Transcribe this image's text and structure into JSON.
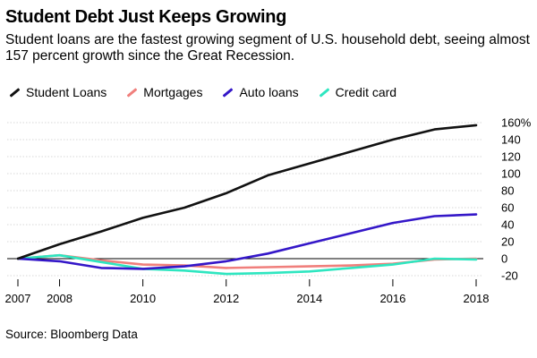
{
  "title": "Student Debt Just Keeps Growing",
  "subtitle": "Student loans are the fastest growing segment of U.S. household debt, seeing almost 157 percent growth since the Great Recession.",
  "source": "Source: Bloomberg Data",
  "chart_data": {
    "type": "line",
    "x": [
      2007,
      2008,
      2009,
      2010,
      2011,
      2012,
      2013,
      2014,
      2015,
      2016,
      2017,
      2018
    ],
    "x_tick_labels": [
      "2007",
      "2008",
      "2010",
      "2012",
      "2014",
      "2016",
      "2018"
    ],
    "y_tick_labels": [
      "160%",
      "140",
      "120",
      "100",
      "80",
      "60",
      "40",
      "20",
      "0",
      "-20"
    ],
    "ylim": [
      -20,
      160
    ],
    "legend_placement": "top-left",
    "series": [
      {
        "name": "Student Loans",
        "color": "#111111",
        "values": [
          0,
          17,
          32,
          48,
          60,
          77,
          98,
          112,
          126,
          140,
          152,
          157
        ]
      },
      {
        "name": "Mortgages",
        "color": "#f07f7c",
        "values": [
          0,
          4,
          -2,
          -7,
          -8,
          -11,
          -10,
          -9,
          -8,
          -6,
          -1,
          0
        ]
      },
      {
        "name": "Auto loans",
        "color": "#3417c8",
        "values": [
          0,
          -3,
          -11,
          -12,
          -9,
          -3,
          6,
          18,
          30,
          42,
          50,
          52
        ]
      },
      {
        "name": "Credit card",
        "color": "#2ee6c0",
        "values": [
          0,
          4,
          -4,
          -12,
          -14,
          -18,
          -17,
          -15,
          -11,
          -7,
          0,
          -1
        ]
      }
    ]
  }
}
